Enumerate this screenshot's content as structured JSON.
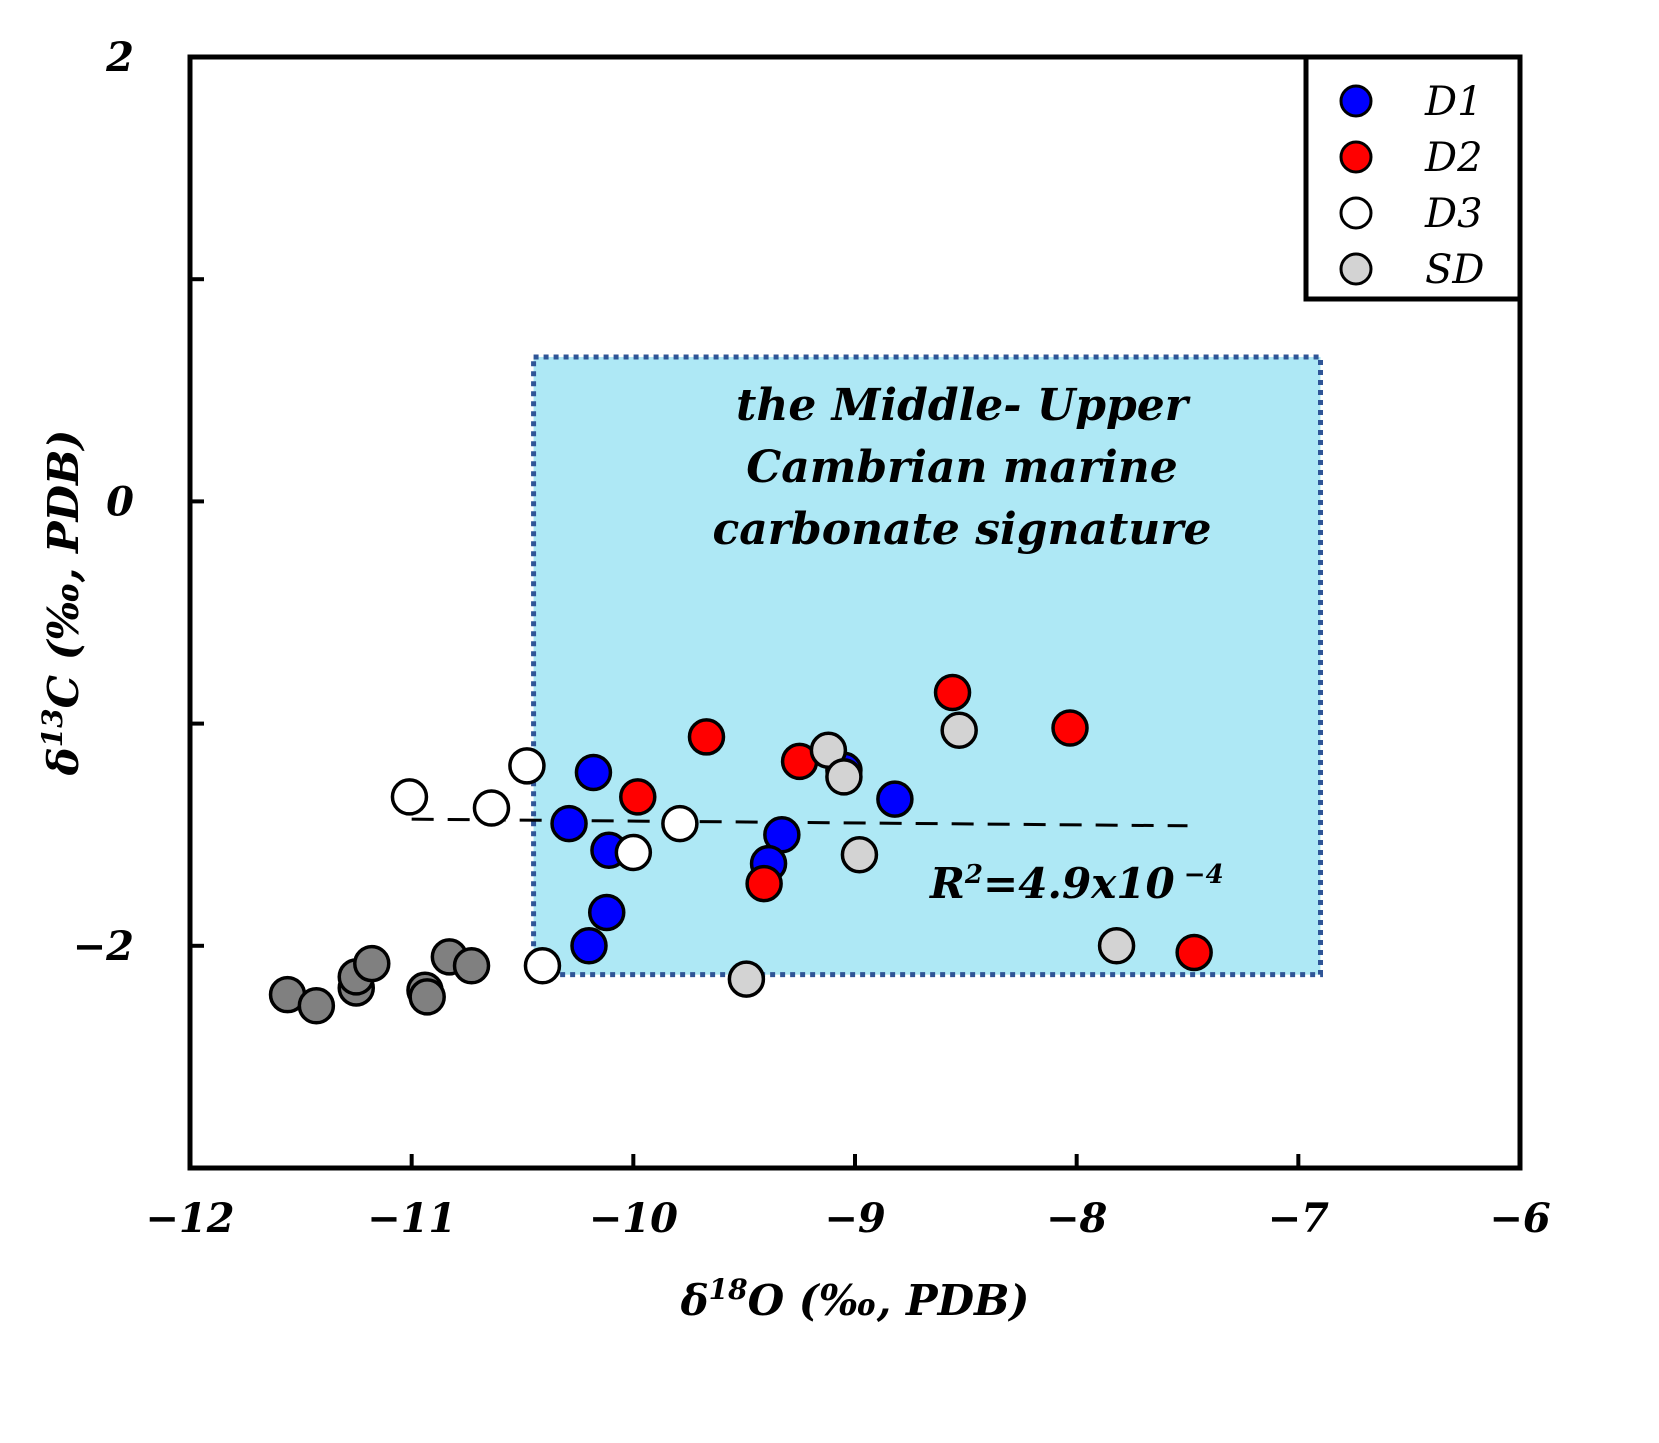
{
  "chart_data": {
    "type": "scatter",
    "title": "",
    "xlabel": "δ18O (‰, PDB)",
    "ylabel": "δ13C (‰, PDB)",
    "xlabel_parts": {
      "delta": "δ",
      "sup": "18",
      "rest": "O (‰, PDB)"
    },
    "ylabel_parts": {
      "delta": "δ",
      "sup": "13",
      "rest": "C (‰, PDB)"
    },
    "xlim": [
      -12,
      -6
    ],
    "ylim": [
      -3,
      2
    ],
    "x_ticks": [
      -12,
      -11,
      -10,
      -9,
      -8,
      -7,
      -6
    ],
    "x_tick_labels": [
      "−12",
      "−11",
      "−10",
      "−9",
      "−8",
      "−7",
      "−6"
    ],
    "y_ticks": [
      -3,
      -2,
      -1,
      0,
      1,
      2
    ],
    "y_tick_labels": [
      "",
      "−2",
      "",
      "0",
      "",
      "2"
    ],
    "legend_position": "top-right",
    "series": [
      {
        "name": "D1",
        "color": "#0000ff",
        "points": [
          {
            "x": -10.18,
            "y": -1.22
          },
          {
            "x": -10.29,
            "y": -1.45
          },
          {
            "x": -10.11,
            "y": -1.57
          },
          {
            "x": -10.12,
            "y": -1.85
          },
          {
            "x": -10.2,
            "y": -2.0
          },
          {
            "x": -9.33,
            "y": -1.5
          },
          {
            "x": -9.39,
            "y": -1.63
          },
          {
            "x": -9.05,
            "y": -1.21
          },
          {
            "x": -8.82,
            "y": -1.34
          }
        ]
      },
      {
        "name": "D2",
        "color": "#ff0000",
        "points": [
          {
            "x": -9.67,
            "y": -1.06
          },
          {
            "x": -9.98,
            "y": -1.33
          },
          {
            "x": -9.25,
            "y": -1.17
          },
          {
            "x": -9.41,
            "y": -1.72
          },
          {
            "x": -8.56,
            "y": -0.86
          },
          {
            "x": -8.03,
            "y": -1.02
          },
          {
            "x": -7.47,
            "y": -2.03
          }
        ]
      },
      {
        "name": "D3",
        "color": "#ffffff",
        "points": [
          {
            "x": -11.01,
            "y": -1.33
          },
          {
            "x": -10.48,
            "y": -1.19
          },
          {
            "x": -10.64,
            "y": -1.38
          },
          {
            "x": -10.41,
            "y": -2.09
          },
          {
            "x": -10.0,
            "y": -1.58
          },
          {
            "x": -9.79,
            "y": -1.45
          }
        ]
      },
      {
        "name": "SD",
        "color": "#d3d3d3",
        "points": [
          {
            "x": -9.12,
            "y": -1.12
          },
          {
            "x": -9.05,
            "y": -1.24
          },
          {
            "x": -8.53,
            "y": -1.03
          },
          {
            "x": -8.98,
            "y": -1.59
          },
          {
            "x": -9.49,
            "y": -2.15
          },
          {
            "x": -7.82,
            "y": -2.0
          }
        ]
      },
      {
        "name": "dark-gray",
        "color": "#808080",
        "in_legend": false,
        "points": [
          {
            "x": -11.56,
            "y": -2.22
          },
          {
            "x": -11.43,
            "y": -2.27
          },
          {
            "x": -11.25,
            "y": -2.19
          },
          {
            "x": -11.25,
            "y": -2.14
          },
          {
            "x": -11.18,
            "y": -2.08
          },
          {
            "x": -10.94,
            "y": -2.2
          },
          {
            "x": -10.93,
            "y": -2.23
          },
          {
            "x": -10.83,
            "y": -2.05
          },
          {
            "x": -10.73,
            "y": -2.09
          }
        ]
      }
    ],
    "trendline": {
      "x": [
        -11.0,
        -7.5
      ],
      "y": [
        -1.43,
        -1.46
      ],
      "style": "dashed"
    },
    "r2_label": {
      "base": "R",
      "sup": "2",
      "mid": "=4.9x10",
      "exp": " −4"
    },
    "shaded_region": {
      "x_range": [
        -10.45,
        -6.9
      ],
      "y_range": [
        -2.13,
        0.65
      ],
      "fill": "#aee8f5",
      "border": "#2f5597",
      "label_lines": [
        "the Middle- Upper",
        "Cambrian marine",
        "carbonate signature"
      ]
    }
  }
}
